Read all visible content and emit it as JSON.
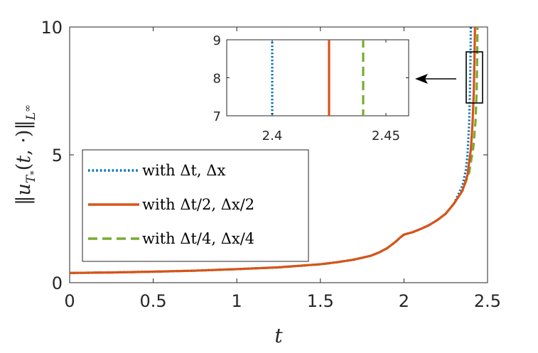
{
  "chart_data": {
    "type": "line",
    "xlabel": "t",
    "ylabel": "‖u_{T*}(t,·)‖_{L^∞}",
    "xlim": [
      0,
      2.5
    ],
    "ylim": [
      0,
      10
    ],
    "xticks": [
      "0",
      "0.5",
      "1",
      "1.5",
      "2",
      "2.5"
    ],
    "yticks": [
      "0",
      "5",
      "10"
    ],
    "grid": false,
    "legend_position": "lower-left",
    "series": [
      {
        "name": "with Δt, Δx",
        "color": "#0072BD",
        "dash": "dotted",
        "blowup_t": 2.4,
        "x": [
          0,
          0.25,
          0.5,
          0.75,
          1.0,
          1.25,
          1.5,
          1.6,
          1.7,
          1.8,
          1.85,
          1.9,
          1.95,
          1.98,
          2.0,
          2.05,
          2.1,
          2.15,
          2.2,
          2.25,
          2.3,
          2.35,
          2.37,
          2.38,
          2.39,
          2.395,
          2.398,
          2.4
        ],
        "y": [
          0.38,
          0.4,
          0.43,
          0.47,
          0.53,
          0.6,
          0.72,
          0.8,
          0.9,
          1.05,
          1.18,
          1.35,
          1.6,
          1.78,
          1.88,
          1.97,
          2.1,
          2.25,
          2.45,
          2.7,
          3.1,
          3.8,
          4.4,
          5.0,
          6.2,
          7.5,
          8.8,
          10
        ]
      },
      {
        "name": "with Δt/2, Δx/2",
        "color": "#D95319",
        "dash": "solid",
        "blowup_t": 2.425,
        "x": [
          0,
          0.25,
          0.5,
          0.75,
          1.0,
          1.25,
          1.5,
          1.6,
          1.7,
          1.8,
          1.85,
          1.9,
          1.95,
          1.98,
          2.0,
          2.05,
          2.1,
          2.15,
          2.2,
          2.25,
          2.3,
          2.35,
          2.38,
          2.4,
          2.41,
          2.418,
          2.422,
          2.425
        ],
        "y": [
          0.38,
          0.4,
          0.43,
          0.47,
          0.53,
          0.6,
          0.72,
          0.8,
          0.9,
          1.05,
          1.18,
          1.35,
          1.6,
          1.78,
          1.88,
          1.97,
          2.1,
          2.25,
          2.45,
          2.7,
          3.1,
          3.6,
          4.2,
          5.2,
          6.2,
          7.5,
          8.8,
          10
        ]
      },
      {
        "name": "with Δt/4, Δx/4",
        "color": "#77AC30",
        "dash": "dashed",
        "blowup_t": 2.44,
        "x": [
          0,
          0.25,
          0.5,
          0.75,
          1.0,
          1.25,
          1.5,
          1.6,
          1.7,
          1.8,
          1.85,
          1.9,
          1.95,
          1.98,
          2.0,
          2.05,
          2.1,
          2.15,
          2.2,
          2.25,
          2.3,
          2.35,
          2.39,
          2.415,
          2.428,
          2.435,
          2.438,
          2.44
        ],
        "y": [
          0.38,
          0.4,
          0.43,
          0.47,
          0.53,
          0.6,
          0.72,
          0.8,
          0.9,
          1.05,
          1.18,
          1.35,
          1.6,
          1.78,
          1.88,
          1.97,
          2.1,
          2.25,
          2.45,
          2.7,
          3.1,
          3.6,
          4.3,
          5.3,
          6.3,
          7.5,
          8.8,
          10
        ]
      }
    ],
    "inset": {
      "xlim": [
        2.38,
        2.46
      ],
      "ylim": [
        7,
        9
      ],
      "xticks": [
        "2.4",
        "2.45"
      ],
      "yticks": [
        "7",
        "8",
        "9"
      ],
      "zoom_box": {
        "xlim": [
          2.38,
          2.46
        ],
        "ylim": [
          7,
          9
        ]
      }
    }
  }
}
